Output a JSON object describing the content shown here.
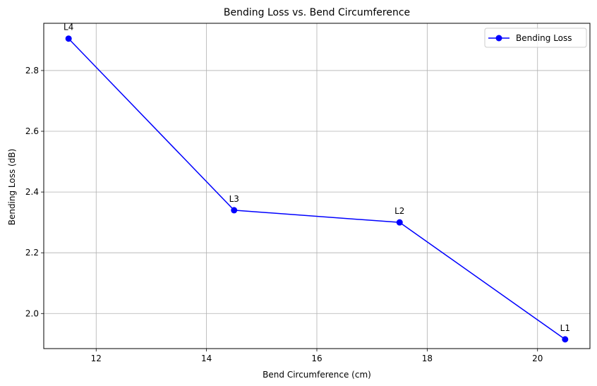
{
  "chart_data": {
    "type": "line",
    "title": "Bending Loss vs. Bend Circumference",
    "xlabel": "Bend Circumference (cm)",
    "ylabel": "Bending Loss (dB)",
    "xlim": [
      11.05,
      20.95
    ],
    "ylim": [
      1.8845,
      2.9555
    ],
    "xticks": [
      12,
      14,
      16,
      18,
      20
    ],
    "yticks": [
      2.0,
      2.2,
      2.4,
      2.6,
      2.8
    ],
    "grid": true,
    "legend_position": "top-right",
    "series": [
      {
        "name": "Bending Loss",
        "color": "#0000ff",
        "marker": "circle",
        "x": [
          20.5,
          17.5,
          14.5,
          11.5
        ],
        "y": [
          1.915,
          2.3,
          2.34,
          2.905
        ],
        "point_labels": [
          "L1",
          "L2",
          "L3",
          "L4"
        ]
      }
    ]
  },
  "colors": {
    "grid": "#b0b0b0",
    "axis": "#000000",
    "line": "#0000ff"
  }
}
